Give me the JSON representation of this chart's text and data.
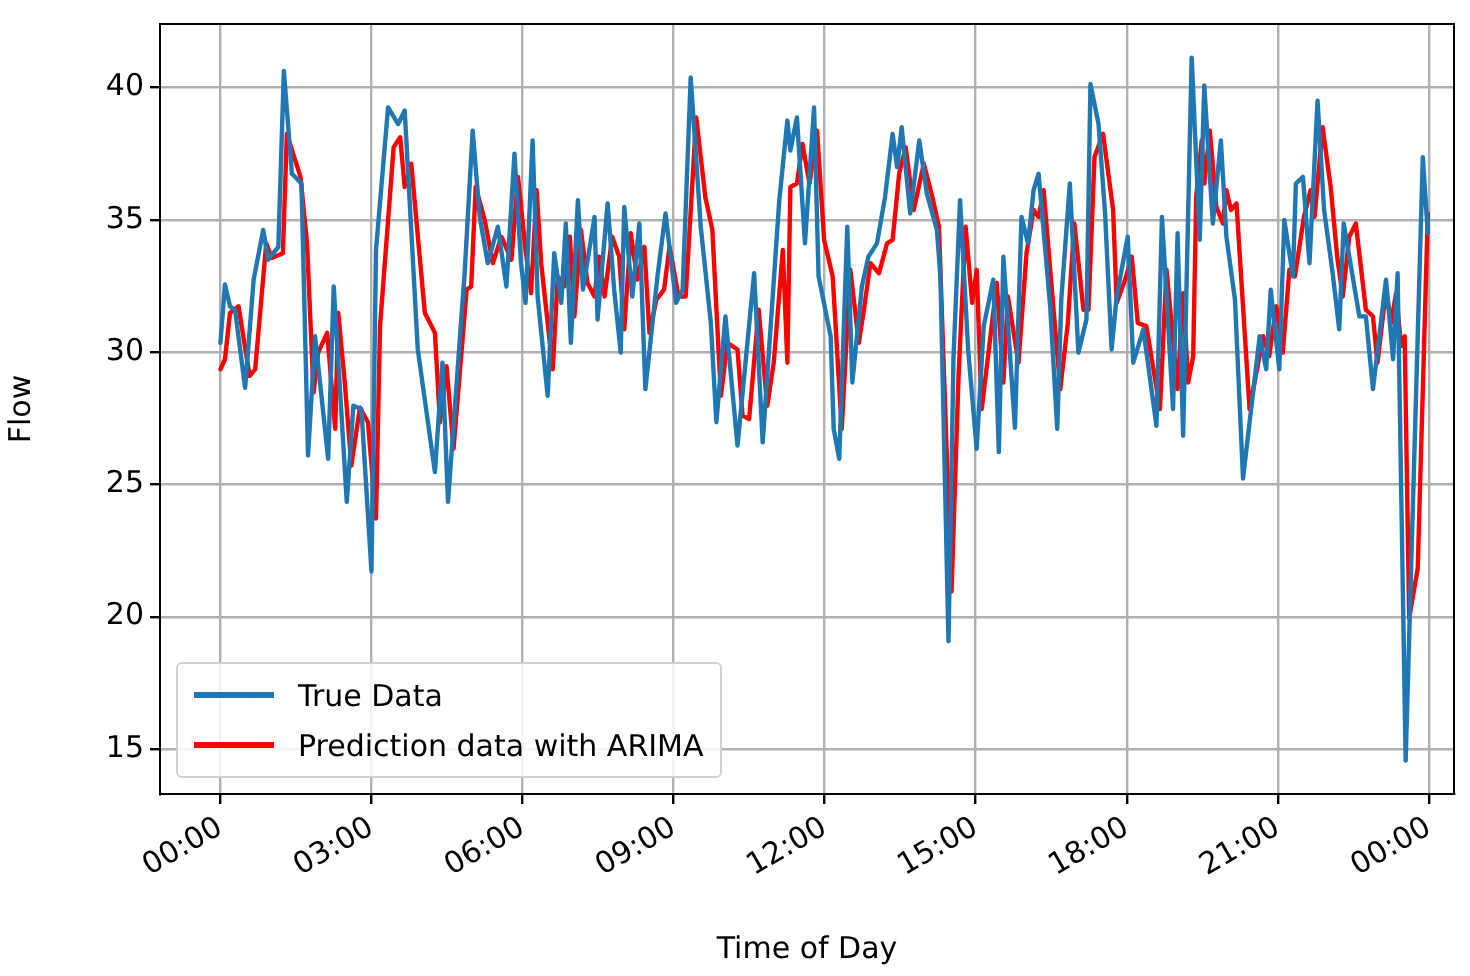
{
  "chart_data": {
    "type": "line",
    "xlabel": "Time of Day",
    "ylabel": "Flow",
    "xlim": [
      -1.2,
      24.5
    ],
    "ylim": [
      13.3,
      42.4
    ],
    "xticks": [
      {
        "value": 0,
        "label": "00:00"
      },
      {
        "value": 3,
        "label": "03:00"
      },
      {
        "value": 6,
        "label": "06:00"
      },
      {
        "value": 9,
        "label": "09:00"
      },
      {
        "value": 12,
        "label": "12:00"
      },
      {
        "value": 15,
        "label": "15:00"
      },
      {
        "value": 18,
        "label": "18:00"
      },
      {
        "value": 21,
        "label": "21:00"
      },
      {
        "value": 24,
        "label": "00:00"
      }
    ],
    "yticks": [
      15,
      20,
      25,
      30,
      35,
      40
    ],
    "grid": true,
    "legend": "bottom left",
    "line_style": "solid",
    "series": [
      {
        "name": "True Data",
        "color": "#1f77b4",
        "x": [
          0,
          0.09,
          0.19,
          0.29,
          0.49,
          0.66,
          0.85,
          0.95,
          1.15,
          1.26,
          1.42,
          1.61,
          1.74,
          1.88,
          2.14,
          2.25,
          2.51,
          2.64,
          2.8,
          3.0,
          3.09,
          3.33,
          3.53,
          3.66,
          3.92,
          4.26,
          4.41,
          4.52,
          4.85,
          5.01,
          5.15,
          5.31,
          5.51,
          5.68,
          5.84,
          5.97,
          6.06,
          6.2,
          6.3,
          6.5,
          6.63,
          6.77,
          6.86,
          6.96,
          7.1,
          7.2,
          7.43,
          7.49,
          7.69,
          7.82,
          7.95,
          8.02,
          8.18,
          8.32,
          8.44,
          8.68,
          8.84,
          9.05,
          9.18,
          9.34,
          9.54,
          9.74,
          9.85,
          10.03,
          10.27,
          10.6,
          10.77,
          11.1,
          11.26,
          11.32,
          11.45,
          11.61,
          11.79,
          11.88,
          12.12,
          12.18,
          12.29,
          12.45,
          12.55,
          12.74,
          12.87,
          13.04,
          13.2,
          13.35,
          13.44,
          13.53,
          13.7,
          13.88,
          14.03,
          14.23,
          14.3,
          14.46,
          14.56,
          14.69,
          14.85,
          15.02,
          15.16,
          15.35,
          15.46,
          15.55,
          15.78,
          15.91,
          16.04,
          16.15,
          16.25,
          16.48,
          16.62,
          16.7,
          16.87,
          17.04,
          17.2,
          17.28,
          17.44,
          17.57,
          17.7,
          17.8,
          18.02,
          18.13,
          18.33,
          18.59,
          18.7,
          18.92,
          19.01,
          19.12,
          19.29,
          19.45,
          19.54,
          19.71,
          19.87,
          19.98,
          20.15,
          20.31,
          20.64,
          20.77,
          20.86,
          21.03,
          21.13,
          21.3,
          21.36,
          21.5,
          21.63,
          21.79,
          21.92,
          22.09,
          22.22,
          22.31,
          22.62,
          22.75,
          22.89,
          23.15,
          23.29,
          23.38,
          23.54,
          23.88,
          23.98
        ],
        "values": [
          30.35,
          32.56,
          31.73,
          31.6,
          28.65,
          32.74,
          34.62,
          33.49,
          33.98,
          40.63,
          36.74,
          36.37,
          26.09,
          30.6,
          25.97,
          32.48,
          24.34,
          27.97,
          27.85,
          21.71,
          33.86,
          39.25,
          38.62,
          39.13,
          30.1,
          25.47,
          29.6,
          24.34,
          32.98,
          38.37,
          35.11,
          33.36,
          34.74,
          32.48,
          37.5,
          33.36,
          31.86,
          38.0,
          32.1,
          28.35,
          33.74,
          31.86,
          34.86,
          30.35,
          35.74,
          32.36,
          35.11,
          31.23,
          35.62,
          32.36,
          29.98,
          35.49,
          32.1,
          34.86,
          28.6,
          32.86,
          35.24,
          31.86,
          32.36,
          40.38,
          34.74,
          31.1,
          27.35,
          31.35,
          26.47,
          32.98,
          26.59,
          35.74,
          38.75,
          37.62,
          38.87,
          34.11,
          39.25,
          32.86,
          30.6,
          27.1,
          25.97,
          34.74,
          28.85,
          32.48,
          33.61,
          34.11,
          35.86,
          38.25,
          36.99,
          38.5,
          35.24,
          38.0,
          35.99,
          34.62,
          32.86,
          19.07,
          29.85,
          35.74,
          30.1,
          26.35,
          30.98,
          32.74,
          26.22,
          33.61,
          27.14,
          35.11,
          34.11,
          36.12,
          36.74,
          31.73,
          27.1,
          31.98,
          36.37,
          29.98,
          31.23,
          40.13,
          38.62,
          35.24,
          30.1,
          32.1,
          34.36,
          29.6,
          30.86,
          27.22,
          35.11,
          27.85,
          34.49,
          26.84,
          41.13,
          34.24,
          40.08,
          34.86,
          38.0,
          34.36,
          31.98,
          25.22,
          30.6,
          29.35,
          32.36,
          29.35,
          34.99,
          32.86,
          36.37,
          36.62,
          33.36,
          39.5,
          35.37,
          32.98,
          30.86,
          34.86,
          31.35,
          31.35,
          28.6,
          32.74,
          29.73,
          32.98,
          14.56,
          37.37,
          34.49
        ]
      },
      {
        "name": "Prediction data with ARIMA",
        "color": "#ff0000",
        "x": [
          0,
          0.09,
          0.19,
          0.36,
          0.58,
          0.69,
          0.91,
          1.02,
          1.24,
          1.32,
          1.59,
          1.72,
          1.85,
          1.94,
          2.12,
          2.28,
          2.34,
          2.47,
          2.6,
          2.77,
          2.93,
          3.09,
          3.17,
          3.44,
          3.57,
          3.66,
          3.79,
          4.06,
          4.26,
          4.36,
          4.49,
          4.63,
          4.89,
          4.98,
          5.07,
          5.25,
          5.41,
          5.58,
          5.78,
          5.91,
          6.06,
          6.17,
          6.28,
          6.37,
          6.6,
          6.7,
          6.83,
          6.94,
          7.03,
          7.16,
          7.29,
          7.43,
          7.52,
          7.63,
          7.78,
          7.92,
          8.02,
          8.15,
          8.28,
          8.42,
          8.52,
          8.66,
          8.81,
          8.92,
          9.1,
          9.24,
          9.45,
          9.63,
          9.77,
          9.94,
          10.07,
          10.27,
          10.37,
          10.5,
          10.69,
          10.86,
          10.99,
          11.17,
          11.26,
          11.32,
          11.45,
          11.56,
          11.7,
          11.85,
          11.99,
          12.16,
          12.34,
          12.51,
          12.68,
          12.78,
          12.91,
          13.08,
          13.24,
          13.35,
          13.48,
          13.61,
          13.77,
          13.97,
          14.14,
          14.27,
          14.52,
          14.66,
          14.8,
          14.93,
          15.02,
          15.12,
          15.42,
          15.55,
          15.64,
          15.85,
          16.01,
          16.15,
          16.25,
          16.35,
          16.48,
          16.68,
          16.83,
          16.96,
          17.14,
          17.24,
          17.36,
          17.53,
          17.73,
          17.8,
          17.97,
          18.1,
          18.22,
          18.39,
          18.66,
          18.79,
          19.01,
          19.12,
          19.22,
          19.32,
          19.38,
          19.49,
          19.54,
          19.65,
          19.78,
          19.91,
          19.98,
          20.07,
          20.18,
          20.28,
          20.44,
          20.71,
          20.83,
          20.97,
          21.1,
          21.23,
          21.34,
          21.52,
          21.65,
          21.73,
          21.89,
          22.05,
          22.18,
          22.29,
          22.42,
          22.55,
          22.75,
          22.89,
          22.98,
          23.15,
          23.25,
          23.35,
          23.45,
          23.52,
          23.61,
          23.78,
          23.98
        ],
        "values": [
          29.35,
          29.73,
          31.48,
          31.73,
          29.1,
          29.35,
          34.11,
          33.56,
          33.74,
          38.25,
          36.62,
          34.11,
          28.47,
          29.98,
          30.73,
          27.1,
          31.48,
          28.85,
          25.71,
          27.9,
          27.35,
          23.71,
          30.98,
          37.74,
          38.12,
          36.24,
          37.12,
          31.48,
          30.73,
          27.35,
          29.47,
          26.35,
          32.36,
          32.48,
          36.24,
          34.99,
          33.36,
          34.36,
          33.49,
          36.62,
          33.86,
          32.23,
          36.12,
          33.36,
          29.35,
          32.86,
          32.48,
          34.36,
          31.35,
          34.62,
          32.61,
          32.1,
          33.61,
          32.1,
          34.36,
          33.61,
          30.86,
          34.49,
          32.74,
          33.98,
          30.73,
          31.98,
          32.36,
          33.98,
          32.1,
          32.1,
          38.87,
          35.86,
          34.62,
          28.35,
          30.35,
          30.1,
          27.6,
          27.47,
          31.6,
          27.97,
          29.6,
          33.86,
          29.6,
          36.24,
          36.37,
          37.87,
          36.37,
          38.37,
          34.24,
          32.86,
          27.1,
          33.11,
          30.35,
          31.6,
          33.36,
          32.98,
          34.11,
          34.24,
          36.74,
          37.74,
          35.37,
          37.12,
          35.86,
          34.74,
          20.95,
          29.1,
          34.74,
          31.86,
          33.11,
          27.85,
          32.61,
          28.85,
          32.1,
          29.6,
          33.74,
          35.37,
          35.11,
          36.12,
          33.11,
          28.6,
          31.1,
          34.86,
          31.6,
          31.6,
          37.37,
          38.25,
          35.37,
          31.86,
          32.74,
          33.61,
          31.1,
          30.98,
          27.85,
          33.11,
          28.6,
          32.23,
          28.85,
          29.85,
          35.86,
          38.0,
          36.37,
          38.37,
          35.49,
          34.86,
          36.12,
          35.37,
          35.62,
          32.61,
          27.85,
          30.6,
          29.85,
          31.73,
          29.98,
          33.11,
          32.86,
          35.11,
          36.12,
          35.11,
          38.5,
          36.24,
          33.61,
          32.1,
          34.36,
          34.86,
          31.6,
          31.35,
          29.6,
          32.36,
          31.1,
          32.23,
          30.23,
          30.6,
          19.95,
          21.83,
          35.24
        ]
      }
    ]
  }
}
